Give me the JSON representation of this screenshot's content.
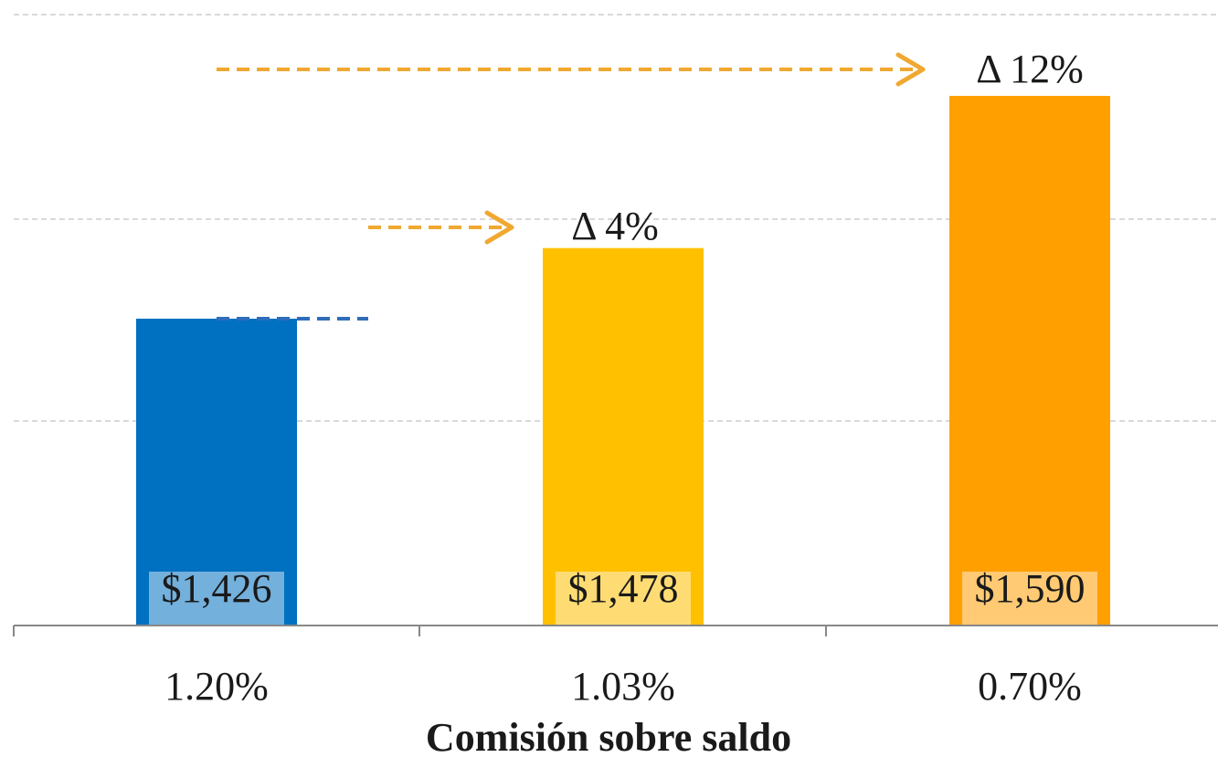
{
  "chart_data": {
    "type": "bar",
    "categories": [
      "1.20%",
      "1.03%",
      "0.70%"
    ],
    "values": [
      1426,
      1478,
      1590
    ],
    "value_labels": [
      "$1,426",
      "$1,478",
      "$1,590"
    ],
    "deltas": [
      {
        "from": "1.20%",
        "to": "1.03%",
        "label": "Δ 4%"
      },
      {
        "from": "1.20%",
        "to": "0.70%",
        "label": "Δ 12%"
      }
    ],
    "xlabel": "Comisión sobre saldo",
    "ylabel": "",
    "title": "",
    "grid": true,
    "legend": "none",
    "colors": [
      "#0070C0",
      "#FFC000",
      "#FF9F00"
    ],
    "arrow_color": "#F0A830"
  }
}
